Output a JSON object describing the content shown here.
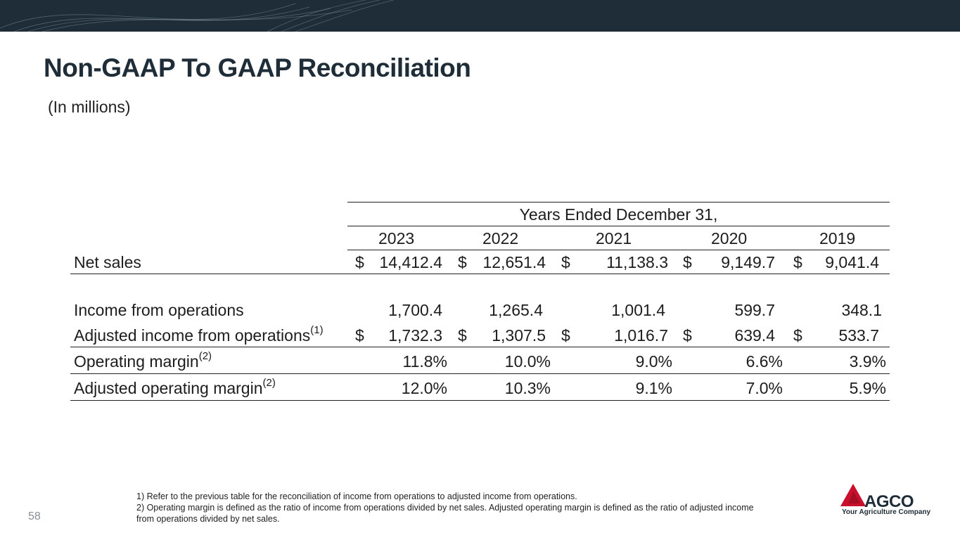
{
  "page": {
    "title": "Non-GAAP To GAAP Reconciliation",
    "subtitle": "(In millions)",
    "page_number": "58"
  },
  "table": {
    "period_header": "Years Ended December 31,",
    "years": [
      "2023",
      "2022",
      "2021",
      "2020",
      "2019"
    ],
    "currency_symbol": "$",
    "rows": {
      "net_sales": {
        "label": "Net sales",
        "values": [
          "14,412.4",
          "12,651.4",
          "11,138.3",
          "9,149.7",
          "9,041.4"
        ]
      },
      "income_ops": {
        "label": "Income from operations",
        "values": [
          "1,700.4",
          "1,265.4",
          "1,001.4",
          "599.7",
          "348.1"
        ]
      },
      "adj_income_ops": {
        "label": "Adjusted income from operations",
        "footnote": "(1)",
        "values": [
          "1,732.3",
          "1,307.5",
          "1,016.7",
          "639.4",
          "533.7"
        ]
      },
      "op_margin": {
        "label": "Operating margin",
        "footnote": "(2)",
        "values": [
          "11.8%",
          "10.0%",
          "9.0%",
          "6.6%",
          "3.9%"
        ]
      },
      "adj_op_margin": {
        "label": "Adjusted operating margin",
        "footnote": "(2)",
        "values": [
          "12.0%",
          "10.3%",
          "9.1%",
          "7.0%",
          "5.9%"
        ]
      }
    }
  },
  "footnotes": {
    "note1": "1) Refer to the previous table for the reconciliation of income from operations to adjusted income from operations.",
    "note2": "2) Operating margin is defined as the ratio of income from operations divided by net sales. Adjusted operating margin is defined as the ratio of adjusted income from operations divided by net sales."
  },
  "logo": {
    "wordmark": "AGCO",
    "tagline": "Your Agriculture Company",
    "brand_red": "#c8102e",
    "brand_navy": "#1e2d38"
  }
}
